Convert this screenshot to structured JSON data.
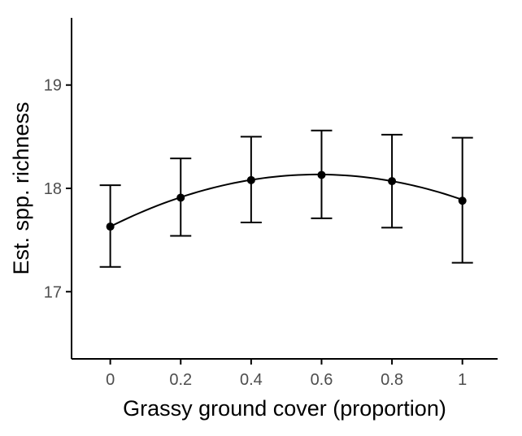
{
  "chart_data": {
    "type": "scatter",
    "xlabel": "Grassy ground cover (proportion)",
    "ylabel": "Est. spp. richness",
    "xlim": [
      -0.11,
      1.1
    ],
    "ylim": [
      16.35,
      19.65
    ],
    "x_ticks": [
      0,
      0.2,
      0.4,
      0.6,
      0.8,
      1
    ],
    "x_tick_labels": [
      "0",
      "0.2",
      "0.4",
      "0.6",
      "0.8",
      "1"
    ],
    "y_ticks": [
      17,
      18,
      19
    ],
    "y_tick_labels": [
      "17",
      "18",
      "19"
    ],
    "grid": false,
    "legend": "none",
    "colors": {
      "points": "#000000",
      "axis": "#000000",
      "tick_labels": "#4d4d4d"
    },
    "series": [
      {
        "x": [
          0,
          0.2,
          0.4,
          0.6,
          0.8,
          1
        ],
        "y": [
          17.63,
          17.91,
          18.08,
          18.13,
          18.07,
          17.88
        ],
        "lower": [
          17.24,
          17.54,
          17.67,
          17.71,
          17.62,
          17.28
        ],
        "upper": [
          18.03,
          18.29,
          18.5,
          18.56,
          18.52,
          18.49
        ]
      }
    ],
    "fit_line": {
      "type": "quadratic",
      "x_range": [
        0,
        1
      ],
      "coefficients": [
        17.63,
        1.71,
        -1.45
      ]
    }
  }
}
